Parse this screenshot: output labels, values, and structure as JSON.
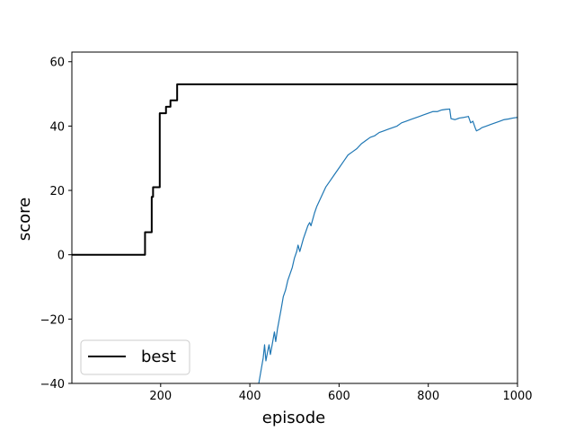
{
  "chart_data": {
    "type": "line",
    "title": "",
    "xlabel": "episode",
    "ylabel": "score",
    "xlim": [
      1,
      1000
    ],
    "ylim": [
      -40,
      63
    ],
    "xticks": [
      200,
      400,
      600,
      800,
      1000
    ],
    "yticks": [
      -40,
      -20,
      0,
      20,
      40,
      60
    ],
    "grid": false,
    "legend": {
      "placement": "lower-left",
      "entries": [
        "best"
      ]
    },
    "series": [
      {
        "name": "best",
        "color": "#000000",
        "step": true,
        "points": [
          [
            1,
            0
          ],
          [
            165,
            7
          ],
          [
            180,
            18
          ],
          [
            183,
            21
          ],
          [
            198,
            44
          ],
          [
            212,
            46
          ],
          [
            222,
            48
          ],
          [
            237,
            53
          ],
          [
            1000,
            53
          ]
        ]
      },
      {
        "color": "#1f77b4",
        "step": false,
        "points": [
          [
            420,
            -40
          ],
          [
            425,
            -36
          ],
          [
            430,
            -32
          ],
          [
            433,
            -28
          ],
          [
            436,
            -33
          ],
          [
            440,
            -30
          ],
          [
            443,
            -28
          ],
          [
            446,
            -31
          ],
          [
            450,
            -28
          ],
          [
            455,
            -24
          ],
          [
            458,
            -27
          ],
          [
            462,
            -23
          ],
          [
            466,
            -20
          ],
          [
            470,
            -17
          ],
          [
            475,
            -13
          ],
          [
            480,
            -11
          ],
          [
            485,
            -8
          ],
          [
            490,
            -6
          ],
          [
            495,
            -4
          ],
          [
            500,
            -1
          ],
          [
            505,
            1
          ],
          [
            508,
            3
          ],
          [
            512,
            1
          ],
          [
            516,
            3
          ],
          [
            520,
            5
          ],
          [
            525,
            7
          ],
          [
            530,
            9
          ],
          [
            534,
            10
          ],
          [
            537,
            9
          ],
          [
            541,
            11
          ],
          [
            545,
            13
          ],
          [
            550,
            15
          ],
          [
            560,
            18
          ],
          [
            570,
            21
          ],
          [
            580,
            23
          ],
          [
            590,
            25
          ],
          [
            600,
            27
          ],
          [
            610,
            29
          ],
          [
            620,
            31
          ],
          [
            630,
            32
          ],
          [
            640,
            33
          ],
          [
            650,
            34.5
          ],
          [
            660,
            35.5
          ],
          [
            670,
            36.5
          ],
          [
            680,
            37
          ],
          [
            690,
            38
          ],
          [
            700,
            38.5
          ],
          [
            710,
            39
          ],
          [
            720,
            39.5
          ],
          [
            730,
            40
          ],
          [
            740,
            41
          ],
          [
            750,
            41.5
          ],
          [
            760,
            42
          ],
          [
            770,
            42.5
          ],
          [
            780,
            43
          ],
          [
            790,
            43.5
          ],
          [
            800,
            44
          ],
          [
            810,
            44.5
          ],
          [
            820,
            44.5
          ],
          [
            830,
            45
          ],
          [
            840,
            45.2
          ],
          [
            848,
            45.3
          ],
          [
            851,
            42.3
          ],
          [
            860,
            42
          ],
          [
            870,
            42.5
          ],
          [
            880,
            42.7
          ],
          [
            890,
            43
          ],
          [
            895,
            41
          ],
          [
            900,
            41.5
          ],
          [
            905,
            39.5
          ],
          [
            908,
            38.5
          ],
          [
            915,
            39
          ],
          [
            920,
            39.5
          ],
          [
            930,
            40
          ],
          [
            940,
            40.5
          ],
          [
            950,
            41
          ],
          [
            960,
            41.5
          ],
          [
            970,
            42
          ],
          [
            980,
            42.2
          ],
          [
            990,
            42.5
          ],
          [
            1000,
            42.7
          ]
        ]
      }
    ]
  }
}
